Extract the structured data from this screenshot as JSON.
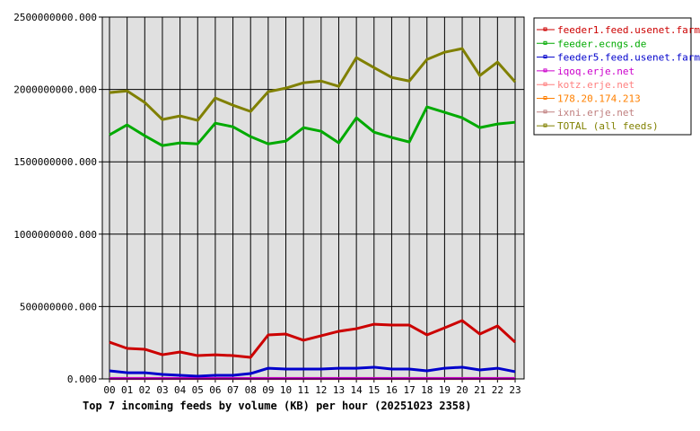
{
  "chart_data": {
    "type": "line",
    "title": "Top 7 incoming feeds by volume (KB) per hour (20251023 2358)",
    "xlabel": "",
    "ylabel": "",
    "ylim": [
      0,
      2500000000
    ],
    "grid": true,
    "legend_position": "right",
    "x": [
      "00",
      "01",
      "02",
      "03",
      "04",
      "05",
      "06",
      "07",
      "08",
      "09",
      "10",
      "11",
      "12",
      "13",
      "14",
      "15",
      "16",
      "17",
      "18",
      "19",
      "20",
      "21",
      "22",
      "23"
    ],
    "y_ticks": [
      "0.000",
      "500000000.000",
      "1000000000.000",
      "1500000000.000",
      "2000000000.000",
      "2500000000.000"
    ],
    "series": [
      {
        "name": "feeder1.feed.usenet.farm",
        "color": "#cc0000",
        "values": [
          254000000.0,
          211000000.0,
          205000000.0,
          167000000.0,
          186000000.0,
          161000000.0,
          167000000.0,
          161000000.0,
          149000000.0,
          304000000.0,
          310000000.0,
          267000000.0,
          298000000.0,
          329000000.0,
          347000000.0,
          378000000.0,
          372000000.0,
          372000000.0,
          304000000.0,
          353000000.0,
          403000000.0,
          310000000.0,
          366000000.0,
          254000000.0
        ]
      },
      {
        "name": "feeder.ecngs.de",
        "color": "#00aa00",
        "values": [
          1686000000.0,
          1755000000.0,
          1680000000.0,
          1612000000.0,
          1631000000.0,
          1624000000.0,
          1767000000.0,
          1742000000.0,
          1674000000.0,
          1624000000.0,
          1643000000.0,
          1736000000.0,
          1711000000.0,
          1631000000.0,
          1804000000.0,
          1705000000.0,
          1668000000.0,
          1637000000.0,
          1879000000.0,
          1842000000.0,
          1804000000.0,
          1736000000.0,
          1761000000.0,
          1773000000.0
        ]
      },
      {
        "name": "feeder5.feed.usenet.farm",
        "color": "#0000cc",
        "values": [
          56000000.0,
          43000000.0,
          43000000.0,
          31000000.0,
          25000000.0,
          19000000.0,
          25000000.0,
          25000000.0,
          37000000.0,
          74000000.0,
          68000000.0,
          68000000.0,
          68000000.0,
          74000000.0,
          74000000.0,
          81000000.0,
          68000000.0,
          68000000.0,
          56000000.0,
          74000000.0,
          81000000.0,
          62000000.0,
          74000000.0,
          50000000.0
        ]
      },
      {
        "name": "iqoq.erje.net",
        "color": "#cc00cc",
        "values": [
          3000000.0,
          3000000.0,
          3000000.0,
          3000000.0,
          3000000.0,
          3000000.0,
          3000000.0,
          3000000.0,
          3000000.0,
          3000000.0,
          3000000.0,
          3000000.0,
          3000000.0,
          3000000.0,
          3000000.0,
          3000000.0,
          3000000.0,
          3000000.0,
          3000000.0,
          3000000.0,
          3000000.0,
          3000000.0,
          3000000.0,
          3000000.0
        ]
      },
      {
        "name": "kotz.erje.net",
        "color": "#ff8080",
        "values": [
          3000000.0,
          3000000.0,
          3000000.0,
          3000000.0,
          3000000.0,
          3000000.0,
          3000000.0,
          3000000.0,
          3000000.0,
          3000000.0,
          3000000.0,
          3000000.0,
          3000000.0,
          3000000.0,
          3000000.0,
          3000000.0,
          3000000.0,
          3000000.0,
          3000000.0,
          3000000.0,
          3000000.0,
          3000000.0,
          3000000.0,
          3000000.0
        ]
      },
      {
        "name": "178.20.174.213",
        "color": "#ff8000",
        "values": [
          2000000.0,
          2000000.0,
          2000000.0,
          2000000.0,
          2000000.0,
          2000000.0,
          2000000.0,
          2000000.0,
          2000000.0,
          2000000.0,
          2000000.0,
          2000000.0,
          2000000.0,
          2000000.0,
          2000000.0,
          2000000.0,
          2000000.0,
          2000000.0,
          2000000.0,
          2000000.0,
          2000000.0,
          2000000.0,
          2000000.0,
          2000000.0
        ]
      },
      {
        "name": "ixni.erje.net",
        "color": "#c08080",
        "values": [
          4000000.0,
          4000000.0,
          4000000.0,
          4000000.0,
          4000000.0,
          4000000.0,
          4000000.0,
          4000000.0,
          4000000.0,
          4000000.0,
          4000000.0,
          4000000.0,
          4000000.0,
          4000000.0,
          4000000.0,
          4000000.0,
          4000000.0,
          4000000.0,
          4000000.0,
          4000000.0,
          4000000.0,
          4000000.0,
          4000000.0,
          4000000.0
        ]
      },
      {
        "name": "TOTAL (all feeds)",
        "color": "#808000",
        "values": [
          1978000000.0,
          1990000000.0,
          1910000000.0,
          1792000000.0,
          1817000000.0,
          1786000000.0,
          1941000000.0,
          1891000000.0,
          1848000000.0,
          1984000000.0,
          2009000000.0,
          2046000000.0,
          2058000000.0,
          2021000000.0,
          2220000000.0,
          2151000000.0,
          2083000000.0,
          2058000000.0,
          2207000000.0,
          2257000000.0,
          2282000000.0,
          2096000000.0,
          2189000000.0,
          2052000000.0
        ]
      }
    ]
  }
}
